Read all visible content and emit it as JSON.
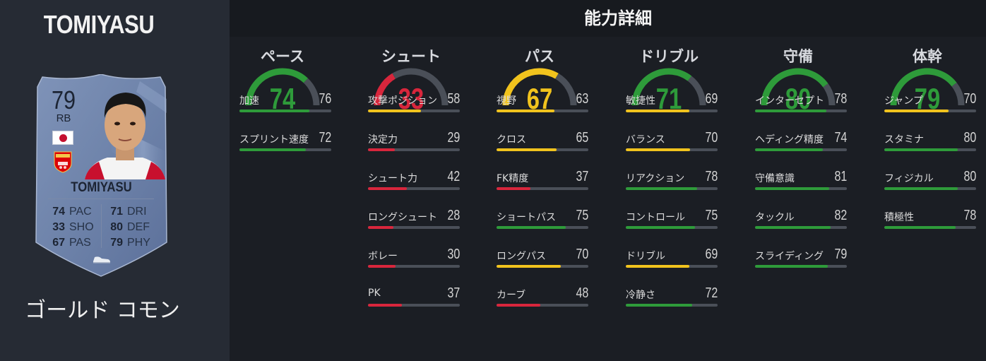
{
  "player": {
    "name": "TOMIYASU",
    "rarity": "ゴールド コモン",
    "card": {
      "rating": "79",
      "position": "RB",
      "name": "TOMIYASU",
      "crest_text": "Arsenal",
      "stats_left": [
        {
          "value": "74",
          "label": "PAC"
        },
        {
          "value": "33",
          "label": "SHO"
        },
        {
          "value": "67",
          "label": "PAS"
        }
      ],
      "stats_right": [
        {
          "value": "71",
          "label": "DRI"
        },
        {
          "value": "80",
          "label": "DEF"
        },
        {
          "value": "79",
          "label": "PHY"
        }
      ]
    }
  },
  "header": {
    "title": "能力詳細"
  },
  "colors": {
    "green": "#2e9b3a",
    "yellow": "#f1c31d",
    "red": "#d8263c",
    "track": "#4a4f58"
  },
  "groups": [
    {
      "title": "ペース",
      "value": "74",
      "color": "green",
      "stats": [
        {
          "label": "加速",
          "value": "76",
          "color": "green"
        },
        {
          "label": "スプリント速度",
          "value": "72",
          "color": "green"
        }
      ]
    },
    {
      "title": "シュート",
      "value": "33",
      "color": "red",
      "stats": [
        {
          "label": "攻撃ポジション",
          "value": "58",
          "color": "yellow"
        },
        {
          "label": "決定力",
          "value": "29",
          "color": "red"
        },
        {
          "label": "シュート力",
          "value": "42",
          "color": "red"
        },
        {
          "label": "ロングシュート",
          "value": "28",
          "color": "red"
        },
        {
          "label": "ボレー",
          "value": "30",
          "color": "red"
        },
        {
          "label": "PK",
          "value": "37",
          "color": "red"
        }
      ]
    },
    {
      "title": "パス",
      "value": "67",
      "color": "yellow",
      "stats": [
        {
          "label": "視野",
          "value": "63",
          "color": "yellow"
        },
        {
          "label": "クロス",
          "value": "65",
          "color": "yellow"
        },
        {
          "label": "FK精度",
          "value": "37",
          "color": "red"
        },
        {
          "label": "ショートパス",
          "value": "75",
          "color": "green"
        },
        {
          "label": "ロングパス",
          "value": "70",
          "color": "yellow"
        },
        {
          "label": "カーブ",
          "value": "48",
          "color": "red"
        }
      ]
    },
    {
      "title": "ドリブル",
      "value": "71",
      "color": "green",
      "stats": [
        {
          "label": "敏捷性",
          "value": "69",
          "color": "yellow"
        },
        {
          "label": "バランス",
          "value": "70",
          "color": "yellow"
        },
        {
          "label": "リアクション",
          "value": "78",
          "color": "green"
        },
        {
          "label": "コントロール",
          "value": "75",
          "color": "green"
        },
        {
          "label": "ドリブル",
          "value": "69",
          "color": "yellow"
        },
        {
          "label": "冷静さ",
          "value": "72",
          "color": "green"
        }
      ]
    },
    {
      "title": "守備",
      "value": "80",
      "color": "green",
      "stats": [
        {
          "label": "インターセプト",
          "value": "78",
          "color": "green"
        },
        {
          "label": "ヘディング精度",
          "value": "74",
          "color": "green"
        },
        {
          "label": "守備意識",
          "value": "81",
          "color": "green"
        },
        {
          "label": "タックル",
          "value": "82",
          "color": "green"
        },
        {
          "label": "スライディング",
          "value": "79",
          "color": "green"
        }
      ]
    },
    {
      "title": "体幹",
      "value": "79",
      "color": "green",
      "stats": [
        {
          "label": "ジャンプ",
          "value": "70",
          "color": "yellow"
        },
        {
          "label": "スタミナ",
          "value": "80",
          "color": "green"
        },
        {
          "label": "フィジカル",
          "value": "80",
          "color": "green"
        },
        {
          "label": "積極性",
          "value": "78",
          "color": "green"
        }
      ]
    }
  ]
}
